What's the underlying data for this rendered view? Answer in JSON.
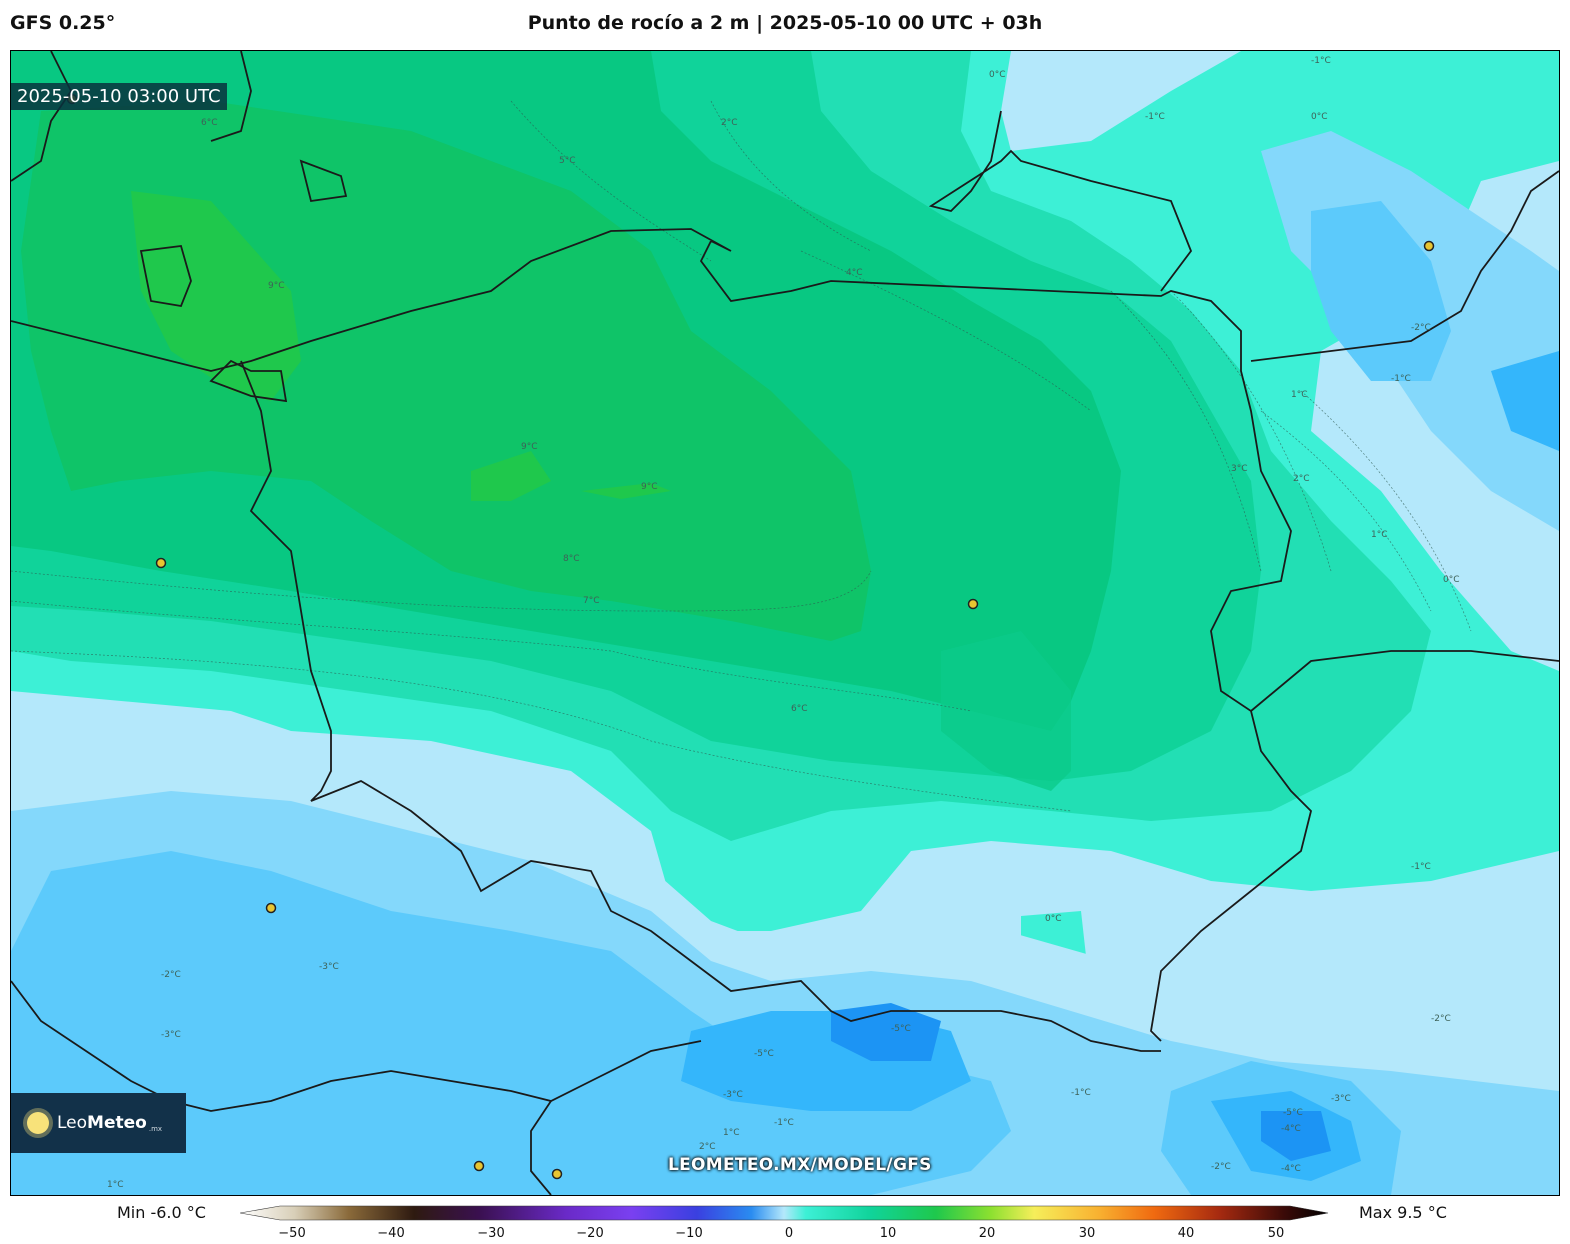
{
  "header": {
    "model": "GFS 0.25°",
    "title": "Punto de rocío a 2 m | 2025-05-10 00 UTC + 03h"
  },
  "map": {
    "valid_time": "2025-05-10 03:00 UTC",
    "watermark": "LEOMETEO.MX/MODEL/GFS",
    "logo": {
      "brand_light": "Leo",
      "brand_bold": "Meteo",
      "tld": ".mx"
    },
    "contour_labels": [
      "9°C",
      "9°C",
      "9°C",
      "8°C",
      "7°C",
      "6°C",
      "5°C",
      "4°C",
      "3°C",
      "2°C",
      "1°C",
      "0°C",
      "-1°C",
      "-2°C",
      "-3°C",
      "-4°C",
      "-5°C",
      "6°C",
      "0°C",
      "-1°C",
      "-2°C",
      "-3°C",
      "-5°C",
      "-1°C",
      "2°C",
      "1°C",
      "-2°C",
      "-3°C",
      "0°C",
      "1°C",
      "-1°C",
      "-2°C",
      "-1°C",
      "2°C",
      "1°C",
      "0°C",
      "-1°C",
      "-3°C",
      "-4°C",
      "-5°C"
    ],
    "colors": {
      "dew_9": "#1fc84c",
      "dew_8": "#0fc468",
      "dew_6": "#08c882",
      "dew_4": "#10d39a",
      "dew_2": "#22dfb4",
      "dew_0": "#3df0d6",
      "dew_m1": "#b4e8fb",
      "dew_m2": "#84d8fb",
      "dew_m3": "#5ccafb",
      "dew_m4": "#34b6fb",
      "dew_m5": "#1c94f4"
    }
  },
  "legend": {
    "min_label": "Min -6.0 °C",
    "max_label": "Max 9.5 °C",
    "ticks": [
      "−50",
      "−40",
      "−30",
      "−20",
      "−10",
      "0",
      "10",
      "20",
      "30",
      "40",
      "50"
    ]
  }
}
